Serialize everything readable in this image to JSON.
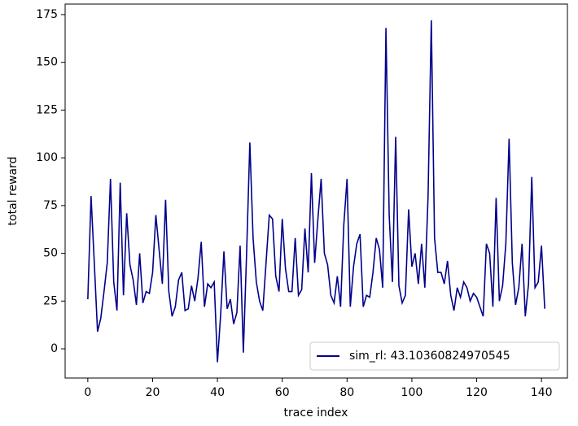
{
  "chart_data": {
    "type": "line",
    "xlabel": "trace index",
    "ylabel": "total reward",
    "x": [
      0,
      1,
      2,
      3,
      4,
      5,
      6,
      7,
      8,
      9,
      10,
      11,
      12,
      13,
      14,
      15,
      16,
      17,
      18,
      19,
      20,
      21,
      22,
      23,
      24,
      25,
      26,
      27,
      28,
      29,
      30,
      31,
      32,
      33,
      34,
      35,
      36,
      37,
      38,
      39,
      40,
      41,
      42,
      43,
      44,
      45,
      46,
      47,
      48,
      49,
      50,
      51,
      52,
      53,
      54,
      55,
      56,
      57,
      58,
      59,
      60,
      61,
      62,
      63,
      64,
      65,
      66,
      67,
      68,
      69,
      70,
      71,
      72,
      73,
      74,
      75,
      76,
      77,
      78,
      79,
      80,
      81,
      82,
      83,
      84,
      85,
      86,
      87,
      88,
      89,
      90,
      91,
      92,
      93,
      94,
      95,
      96,
      97,
      98,
      99,
      100,
      101,
      102,
      103,
      104,
      105,
      106,
      107,
      108,
      109,
      110,
      111,
      112,
      113,
      114,
      115,
      116,
      117,
      118,
      119,
      120,
      121,
      122,
      123,
      124,
      125,
      126,
      127,
      128,
      129,
      130,
      131,
      132,
      133,
      134,
      135,
      136,
      137,
      138,
      139,
      140,
      141
    ],
    "series": [
      {
        "name": "sim_rl: 43.10360824970545",
        "color": "#00008b",
        "values": [
          26,
          80,
          45,
          9,
          16,
          30,
          45,
          89,
          35,
          20,
          87,
          28,
          71,
          44,
          36,
          23,
          50,
          24,
          30,
          29,
          40,
          70,
          52,
          34,
          78,
          30,
          17,
          22,
          36,
          40,
          20,
          21,
          33,
          25,
          37,
          56,
          22,
          34,
          32,
          35,
          -7,
          18,
          51,
          21,
          26,
          13,
          19,
          54,
          -2,
          50,
          108,
          58,
          35,
          25,
          20,
          45,
          70,
          68,
          38,
          30,
          68,
          42,
          30,
          30,
          58,
          28,
          31,
          63,
          40,
          92,
          45,
          68,
          89,
          50,
          44,
          28,
          24,
          38,
          22,
          65,
          89,
          22,
          43,
          55,
          60,
          22,
          28,
          27,
          40,
          58,
          52,
          32,
          168,
          70,
          35,
          111,
          33,
          24,
          28,
          73,
          43,
          50,
          34,
          55,
          32,
          80,
          172,
          58,
          40,
          40,
          34,
          46,
          28,
          20,
          32,
          27,
          35,
          32,
          25,
          29,
          27,
          22,
          17,
          55,
          50,
          22,
          79,
          25,
          33,
          55,
          110,
          45,
          23,
          32,
          55,
          17,
          34,
          90,
          32,
          35,
          54,
          21
        ]
      }
    ],
    "xlim": [
      -7,
      148
    ],
    "ylim": [
      -15.3,
      180.5
    ],
    "xticks": [
      0,
      20,
      40,
      60,
      80,
      100,
      120,
      140
    ],
    "yticks": [
      0,
      25,
      50,
      75,
      100,
      125,
      150,
      175
    ],
    "legend": "lower right"
  }
}
